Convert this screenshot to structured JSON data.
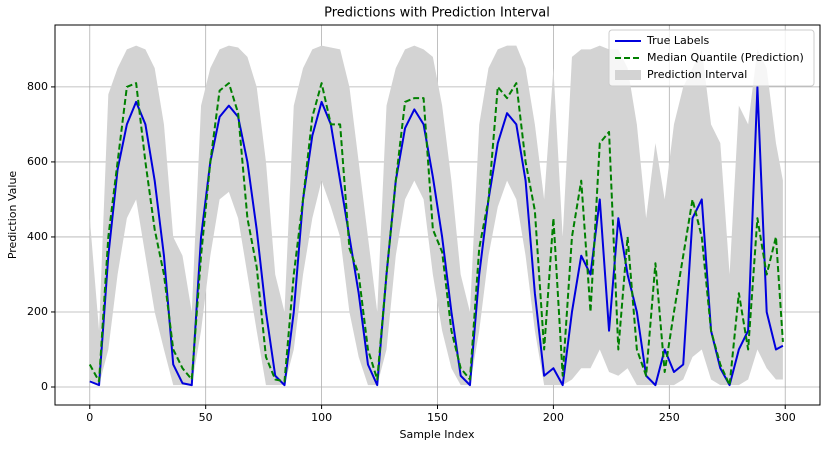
{
  "chart_data": {
    "type": "line",
    "title": "Predictions with Prediction Interval",
    "xlabel": "Sample Index",
    "ylabel": "Prediction Value",
    "x": [
      0,
      4,
      8,
      12,
      16,
      20,
      24,
      28,
      32,
      36,
      40,
      44,
      48,
      52,
      56,
      60,
      64,
      68,
      72,
      76,
      80,
      84,
      88,
      92,
      96,
      100,
      104,
      108,
      112,
      116,
      120,
      124,
      128,
      132,
      136,
      140,
      144,
      148,
      152,
      156,
      160,
      164,
      168,
      172,
      176,
      180,
      184,
      188,
      192,
      196,
      200,
      204,
      208,
      212,
      216,
      220,
      224,
      228,
      232,
      236,
      240,
      244,
      248,
      252,
      256,
      260,
      264,
      268,
      272,
      276,
      280,
      284,
      288,
      292,
      296,
      299
    ],
    "series": [
      {
        "name": "True Labels",
        "color": "#0000dd",
        "dash": false,
        "values": [
          15,
          5,
          350,
          580,
          700,
          760,
          700,
          550,
          350,
          60,
          10,
          5,
          400,
          600,
          720,
          750,
          720,
          600,
          420,
          200,
          30,
          5,
          200,
          500,
          670,
          760,
          700,
          550,
          400,
          250,
          60,
          5,
          300,
          550,
          690,
          740,
          700,
          560,
          400,
          200,
          30,
          5,
          300,
          500,
          650,
          730,
          700,
          550,
          250,
          30,
          50,
          5,
          200,
          350,
          300,
          500,
          150,
          450,
          300,
          200,
          30,
          5,
          100,
          40,
          60,
          450,
          500,
          150,
          50,
          5,
          100,
          150,
          800,
          200,
          100,
          110
        ]
      },
      {
        "name": "Median Quantile (Prediction)",
        "color": "#008000",
        "dash": true,
        "values": [
          60,
          15,
          400,
          600,
          800,
          810,
          600,
          420,
          300,
          100,
          50,
          20,
          350,
          600,
          790,
          810,
          730,
          450,
          320,
          80,
          20,
          15,
          300,
          500,
          720,
          810,
          700,
          700,
          370,
          300,
          100,
          20,
          300,
          550,
          760,
          770,
          770,
          420,
          360,
          150,
          50,
          20,
          370,
          500,
          800,
          770,
          810,
          600,
          470,
          100,
          450,
          30,
          400,
          550,
          200,
          650,
          680,
          100,
          400,
          100,
          30,
          330,
          40,
          200,
          350,
          500,
          400,
          150,
          60,
          5,
          250,
          100,
          450,
          300,
          400,
          120
        ]
      }
    ],
    "interval": {
      "name": "Prediction Interval",
      "color": "#d3d3d3",
      "lower": [
        20,
        5,
        100,
        300,
        450,
        500,
        350,
        200,
        100,
        5,
        5,
        5,
        150,
        350,
        500,
        520,
        450,
        300,
        150,
        5,
        5,
        5,
        100,
        300,
        450,
        550,
        480,
        400,
        200,
        80,
        5,
        5,
        100,
        350,
        500,
        550,
        500,
        300,
        150,
        50,
        5,
        5,
        150,
        350,
        480,
        550,
        500,
        350,
        150,
        5,
        5,
        5,
        20,
        50,
        50,
        100,
        40,
        30,
        50,
        5,
        5,
        5,
        5,
        5,
        20,
        80,
        100,
        20,
        5,
        5,
        5,
        20,
        100,
        50,
        20,
        20
      ],
      "upper": [
        450,
        150,
        780,
        850,
        900,
        910,
        900,
        850,
        700,
        400,
        350,
        200,
        750,
        850,
        900,
        910,
        905,
        880,
        800,
        600,
        300,
        200,
        750,
        850,
        900,
        910,
        905,
        900,
        800,
        600,
        400,
        200,
        750,
        850,
        900,
        910,
        900,
        880,
        750,
        550,
        300,
        200,
        700,
        850,
        900,
        910,
        910,
        850,
        700,
        500,
        850,
        400,
        880,
        900,
        900,
        910,
        900,
        900,
        850,
        700,
        450,
        650,
        500,
        700,
        800,
        850,
        900,
        700,
        650,
        300,
        750,
        700,
        900,
        850,
        650,
        550
      ]
    },
    "xlim": [
      -15,
      315
    ],
    "ylim": [
      -48,
      965
    ],
    "xticks": [
      0,
      50,
      100,
      150,
      200,
      250,
      300
    ],
    "yticks": [
      0,
      200,
      400,
      600,
      800
    ],
    "grid": true,
    "legend": "upper right"
  }
}
